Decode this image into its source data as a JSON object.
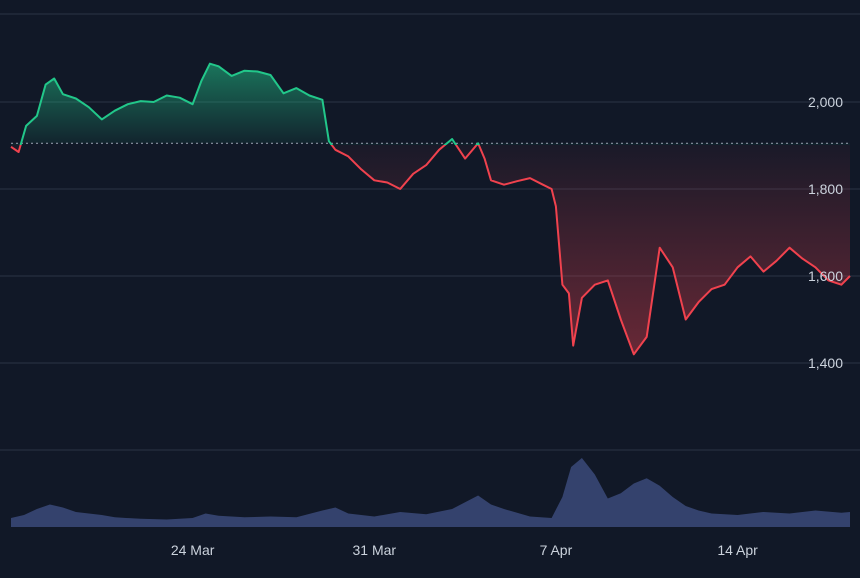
{
  "chart_data": {
    "type": "area",
    "baseline": 1905,
    "y_axis": {
      "position": "right",
      "ticks": [
        {
          "value": 2000,
          "label": "2,000"
        },
        {
          "value": 1800,
          "label": "1,800"
        },
        {
          "value": 1600,
          "label": "1,600"
        },
        {
          "value": 1400,
          "label": "1,400"
        }
      ],
      "ylim": [
        1320,
        2140
      ]
    },
    "x_axis": {
      "xlim": [
        "2024-03-17",
        "2024-04-18"
      ],
      "ticks": [
        {
          "date": "2024-03-24",
          "label": "24 Mar"
        },
        {
          "date": "2024-03-31",
          "label": "31 Mar"
        },
        {
          "date": "2024-04-07",
          "label": "7 Apr"
        },
        {
          "date": "2024-04-14",
          "label": "14 Apr"
        }
      ]
    },
    "grid": true,
    "series": [
      {
        "kind": "price",
        "points": [
          [
            "2024-03-17T00:00",
            1897
          ],
          [
            "2024-03-17T07:00",
            1885
          ],
          [
            "2024-03-17T14:00",
            1945
          ],
          [
            "2024-03-18T00:00",
            1968
          ],
          [
            "2024-03-18T08:00",
            2040
          ],
          [
            "2024-03-18T16:00",
            2054
          ],
          [
            "2024-03-19T00:00",
            2018
          ],
          [
            "2024-03-19T12:00",
            2008
          ],
          [
            "2024-03-20T00:00",
            1988
          ],
          [
            "2024-03-20T12:00",
            1960
          ],
          [
            "2024-03-21T00:00",
            1980
          ],
          [
            "2024-03-21T12:00",
            1995
          ],
          [
            "2024-03-22T00:00",
            2002
          ],
          [
            "2024-03-22T12:00",
            2000
          ],
          [
            "2024-03-23T00:00",
            2015
          ],
          [
            "2024-03-23T12:00",
            2010
          ],
          [
            "2024-03-24T00:00",
            1995
          ],
          [
            "2024-03-24T08:00",
            2048
          ],
          [
            "2024-03-24T16:00",
            2088
          ],
          [
            "2024-03-25T00:00",
            2082
          ],
          [
            "2024-03-25T12:00",
            2060
          ],
          [
            "2024-03-26T00:00",
            2072
          ],
          [
            "2024-03-26T12:00",
            2070
          ],
          [
            "2024-03-27T00:00",
            2062
          ],
          [
            "2024-03-27T12:00",
            2020
          ],
          [
            "2024-03-28T00:00",
            2032
          ],
          [
            "2024-03-28T12:00",
            2015
          ],
          [
            "2024-03-29T00:00",
            2005
          ],
          [
            "2024-03-29T06:00",
            1910
          ],
          [
            "2024-03-29T12:00",
            1890
          ],
          [
            "2024-03-30T00:00",
            1875
          ],
          [
            "2024-03-30T12:00",
            1845
          ],
          [
            "2024-03-31T00:00",
            1820
          ],
          [
            "2024-03-31T12:00",
            1815
          ],
          [
            "2024-04-01T00:00",
            1800
          ],
          [
            "2024-04-01T12:00",
            1835
          ],
          [
            "2024-04-02T00:00",
            1855
          ],
          [
            "2024-04-02T12:00",
            1890
          ],
          [
            "2024-04-03T00:00",
            1915
          ],
          [
            "2024-04-03T12:00",
            1870
          ],
          [
            "2024-04-04T00:00",
            1905
          ],
          [
            "2024-04-04T06:00",
            1870
          ],
          [
            "2024-04-04T12:00",
            1820
          ],
          [
            "2024-04-05T00:00",
            1810
          ],
          [
            "2024-04-05T12:00",
            1818
          ],
          [
            "2024-04-06T00:00",
            1825
          ],
          [
            "2024-04-06T12:00",
            1810
          ],
          [
            "2024-04-06T20:00",
            1800
          ],
          [
            "2024-04-07T00:00",
            1760
          ],
          [
            "2024-04-07T06:00",
            1580
          ],
          [
            "2024-04-07T12:00",
            1560
          ],
          [
            "2024-04-07T16:00",
            1440
          ],
          [
            "2024-04-08T00:00",
            1550
          ],
          [
            "2024-04-08T12:00",
            1580
          ],
          [
            "2024-04-09T00:00",
            1590
          ],
          [
            "2024-04-09T12:00",
            1500
          ],
          [
            "2024-04-10T00:00",
            1420
          ],
          [
            "2024-04-10T12:00",
            1460
          ],
          [
            "2024-04-11T00:00",
            1665
          ],
          [
            "2024-04-11T12:00",
            1620
          ],
          [
            "2024-04-12T00:00",
            1500
          ],
          [
            "2024-04-12T12:00",
            1540
          ],
          [
            "2024-04-13T00:00",
            1570
          ],
          [
            "2024-04-13T12:00",
            1580
          ],
          [
            "2024-04-14T00:00",
            1620
          ],
          [
            "2024-04-14T12:00",
            1645
          ],
          [
            "2024-04-15T00:00",
            1610
          ],
          [
            "2024-04-15T12:00",
            1635
          ],
          [
            "2024-04-16T00:00",
            1665
          ],
          [
            "2024-04-16T12:00",
            1640
          ],
          [
            "2024-04-17T00:00",
            1620
          ],
          [
            "2024-04-17T12:00",
            1590
          ],
          [
            "2024-04-18T00:00",
            1580
          ],
          [
            "2024-04-18T08:00",
            1600
          ]
        ]
      },
      {
        "kind": "volume",
        "points": [
          [
            "2024-03-17T00:00",
            0.12
          ],
          [
            "2024-03-17T12:00",
            0.16
          ],
          [
            "2024-03-18T00:00",
            0.24
          ],
          [
            "2024-03-18T12:00",
            0.3
          ],
          [
            "2024-03-19T00:00",
            0.26
          ],
          [
            "2024-03-19T12:00",
            0.2
          ],
          [
            "2024-03-20T00:00",
            0.18
          ],
          [
            "2024-03-20T12:00",
            0.16
          ],
          [
            "2024-03-21T00:00",
            0.13
          ],
          [
            "2024-03-22T00:00",
            0.11
          ],
          [
            "2024-03-23T00:00",
            0.1
          ],
          [
            "2024-03-24T00:00",
            0.12
          ],
          [
            "2024-03-24T12:00",
            0.18
          ],
          [
            "2024-03-25T00:00",
            0.15
          ],
          [
            "2024-03-26T00:00",
            0.13
          ],
          [
            "2024-03-27T00:00",
            0.14
          ],
          [
            "2024-03-28T00:00",
            0.13
          ],
          [
            "2024-03-29T00:00",
            0.22
          ],
          [
            "2024-03-29T12:00",
            0.26
          ],
          [
            "2024-03-30T00:00",
            0.18
          ],
          [
            "2024-03-31T00:00",
            0.14
          ],
          [
            "2024-04-01T00:00",
            0.2
          ],
          [
            "2024-04-02T00:00",
            0.17
          ],
          [
            "2024-04-03T00:00",
            0.24
          ],
          [
            "2024-04-04T00:00",
            0.42
          ],
          [
            "2024-04-04T12:00",
            0.3
          ],
          [
            "2024-04-05T00:00",
            0.24
          ],
          [
            "2024-04-06T00:00",
            0.14
          ],
          [
            "2024-04-06T20:00",
            0.12
          ],
          [
            "2024-04-07T06:00",
            0.4
          ],
          [
            "2024-04-07T14:00",
            0.8
          ],
          [
            "2024-04-08T00:00",
            0.92
          ],
          [
            "2024-04-08T12:00",
            0.7
          ],
          [
            "2024-04-09T00:00",
            0.38
          ],
          [
            "2024-04-09T12:00",
            0.45
          ],
          [
            "2024-04-10T00:00",
            0.58
          ],
          [
            "2024-04-10T12:00",
            0.65
          ],
          [
            "2024-04-11T00:00",
            0.55
          ],
          [
            "2024-04-11T12:00",
            0.4
          ],
          [
            "2024-04-12T00:00",
            0.28
          ],
          [
            "2024-04-12T12:00",
            0.22
          ],
          [
            "2024-04-13T00:00",
            0.18
          ],
          [
            "2024-04-14T00:00",
            0.16
          ],
          [
            "2024-04-15T00:00",
            0.2
          ],
          [
            "2024-04-16T00:00",
            0.18
          ],
          [
            "2024-04-17T00:00",
            0.22
          ],
          [
            "2024-04-18T00:00",
            0.19
          ],
          [
            "2024-04-18T08:00",
            0.2
          ]
        ]
      }
    ]
  },
  "colors": {
    "up": "#22c78a",
    "down": "#f0424e",
    "volume": "#3b4a7a",
    "grid": "#2a3345",
    "baseline": "#8b93a3"
  }
}
